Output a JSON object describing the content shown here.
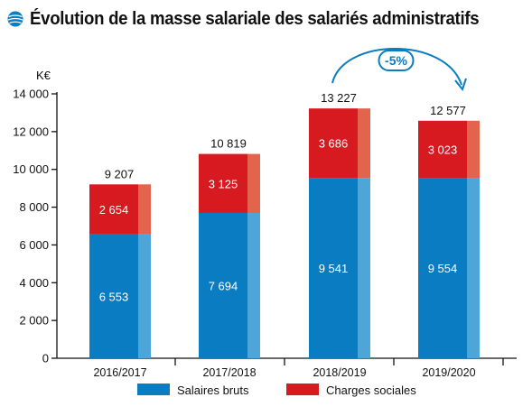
{
  "title": "Évolution de la masse salariale des salariés administratifs",
  "colors": {
    "salaires": "#0a7cc1",
    "salaires_light": "#4ea6d8",
    "charges": "#d71920",
    "charges_light": "#e2644c",
    "annotation": "#0a7cc1",
    "axis": "#111111",
    "title_icon": "#0a7cc1"
  },
  "chart_data": {
    "type": "bar",
    "stacked": true,
    "title": "Évolution de la masse salariale des salariés administratifs",
    "unit_label": "K€",
    "categories": [
      "2016/2017",
      "2017/2018",
      "2018/2019",
      "2019/2020"
    ],
    "series": [
      {
        "name": "Salaires bruts",
        "color": "#0a7cc1",
        "values": [
          6553,
          7694,
          9541,
          9554
        ],
        "labels": [
          "6 553",
          "7 694",
          "9 541",
          "9 554"
        ]
      },
      {
        "name": "Charges sociales",
        "color": "#d71920",
        "values": [
          2654,
          3125,
          3686,
          3023
        ],
        "labels": [
          "2 654",
          "3 125",
          "3 686",
          "3 023"
        ]
      }
    ],
    "totals": [
      9207,
      10819,
      13227,
      12577
    ],
    "total_labels": [
      "9 207",
      "10 819",
      "13 227",
      "12 577"
    ],
    "ylim": [
      0,
      14000
    ],
    "yticks": [
      0,
      2000,
      4000,
      6000,
      8000,
      10000,
      12000,
      14000
    ],
    "ytick_labels": [
      "0",
      "2 000",
      "4 000",
      "6 000",
      "8 000",
      "10 000",
      "12 000",
      "14 000"
    ],
    "grid": false,
    "legend_position": "bottom",
    "annotation": {
      "text": "-5%",
      "from_category": "2018/2019",
      "to_category": "2019/2020"
    }
  }
}
